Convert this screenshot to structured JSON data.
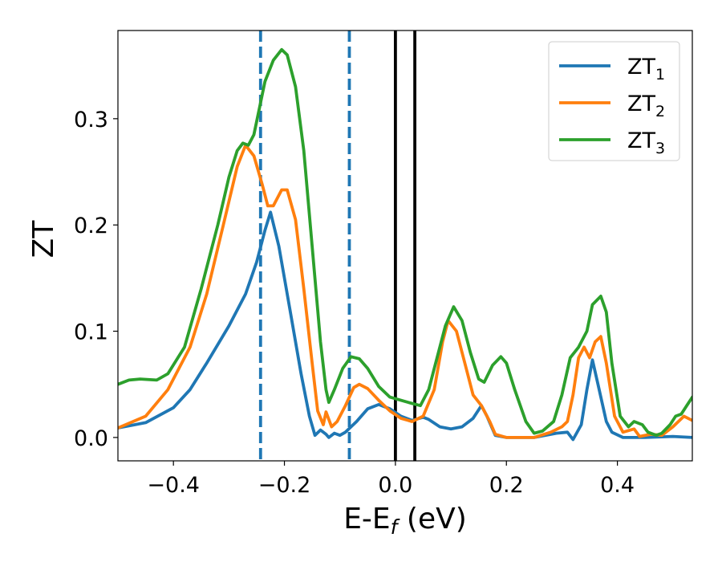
{
  "chart_data": {
    "type": "line",
    "xlabel": "E-E",
    "xlabel_sub": "f",
    "xlabel_unit": " (eV)",
    "ylabel": "ZT",
    "xlim": [
      -0.5,
      0.535
    ],
    "ylim": [
      -0.022,
      0.383
    ],
    "xticks": [
      -0.4,
      -0.2,
      0.0,
      0.2,
      0.4
    ],
    "xtick_labels": [
      "−0.4",
      "−0.2",
      "0.0",
      "0.2",
      "0.4"
    ],
    "yticks": [
      0.0,
      0.1,
      0.2,
      0.3
    ],
    "ytick_labels": [
      "0.0",
      "0.1",
      "0.2",
      "0.3"
    ],
    "grid": false,
    "legend_position": "top-right",
    "vlines": [
      {
        "x": -0.243,
        "style": "dashed",
        "color": "#1f77b4"
      },
      {
        "x": -0.083,
        "style": "dashed",
        "color": "#1f77b4"
      },
      {
        "x": 0.0,
        "style": "solid",
        "color": "#000000"
      },
      {
        "x": 0.035,
        "style": "solid",
        "color": "#000000"
      }
    ],
    "series": [
      {
        "name": "ZT",
        "sub": "1",
        "color": "#1f77b4",
        "points": [
          [
            -0.5,
            0.009
          ],
          [
            -0.45,
            0.014
          ],
          [
            -0.4,
            0.028
          ],
          [
            -0.37,
            0.045
          ],
          [
            -0.34,
            0.07
          ],
          [
            -0.3,
            0.105
          ],
          [
            -0.27,
            0.135
          ],
          [
            -0.25,
            0.165
          ],
          [
            -0.235,
            0.195
          ],
          [
            -0.225,
            0.212
          ],
          [
            -0.21,
            0.18
          ],
          [
            -0.19,
            0.12
          ],
          [
            -0.17,
            0.06
          ],
          [
            -0.155,
            0.02
          ],
          [
            -0.145,
            0.002
          ],
          [
            -0.135,
            0.007
          ],
          [
            -0.125,
            0.003
          ],
          [
            -0.12,
            0.0
          ],
          [
            -0.11,
            0.004
          ],
          [
            -0.1,
            0.002
          ],
          [
            -0.09,
            0.005
          ],
          [
            -0.07,
            0.015
          ],
          [
            -0.05,
            0.027
          ],
          [
            -0.03,
            0.031
          ],
          [
            -0.01,
            0.027
          ],
          [
            0.01,
            0.02
          ],
          [
            0.03,
            0.016
          ],
          [
            0.05,
            0.019
          ],
          [
            0.06,
            0.017
          ],
          [
            0.08,
            0.01
          ],
          [
            0.1,
            0.008
          ],
          [
            0.12,
            0.01
          ],
          [
            0.14,
            0.018
          ],
          [
            0.155,
            0.03
          ],
          [
            0.165,
            0.02
          ],
          [
            0.18,
            0.002
          ],
          [
            0.2,
            0.0
          ],
          [
            0.25,
            0.0
          ],
          [
            0.29,
            0.004
          ],
          [
            0.31,
            0.005
          ],
          [
            0.32,
            -0.002
          ],
          [
            0.335,
            0.012
          ],
          [
            0.345,
            0.045
          ],
          [
            0.355,
            0.073
          ],
          [
            0.365,
            0.05
          ],
          [
            0.38,
            0.015
          ],
          [
            0.39,
            0.005
          ],
          [
            0.41,
            0.0
          ],
          [
            0.45,
            0.0
          ],
          [
            0.5,
            0.001
          ],
          [
            0.535,
            0.0
          ]
        ]
      },
      {
        "name": "ZT",
        "sub": "2",
        "color": "#ff7f0e",
        "points": [
          [
            -0.5,
            0.009
          ],
          [
            -0.45,
            0.02
          ],
          [
            -0.41,
            0.045
          ],
          [
            -0.37,
            0.085
          ],
          [
            -0.34,
            0.135
          ],
          [
            -0.31,
            0.2
          ],
          [
            -0.285,
            0.255
          ],
          [
            -0.27,
            0.275
          ],
          [
            -0.255,
            0.265
          ],
          [
            -0.24,
            0.238
          ],
          [
            -0.23,
            0.218
          ],
          [
            -0.22,
            0.218
          ],
          [
            -0.205,
            0.233
          ],
          [
            -0.195,
            0.233
          ],
          [
            -0.18,
            0.205
          ],
          [
            -0.165,
            0.14
          ],
          [
            -0.15,
            0.07
          ],
          [
            -0.14,
            0.025
          ],
          [
            -0.13,
            0.012
          ],
          [
            -0.125,
            0.024
          ],
          [
            -0.115,
            0.01
          ],
          [
            -0.105,
            0.015
          ],
          [
            -0.09,
            0.03
          ],
          [
            -0.075,
            0.047
          ],
          [
            -0.065,
            0.05
          ],
          [
            -0.05,
            0.046
          ],
          [
            -0.03,
            0.035
          ],
          [
            -0.01,
            0.025
          ],
          [
            0.01,
            0.018
          ],
          [
            0.03,
            0.015
          ],
          [
            0.05,
            0.02
          ],
          [
            0.07,
            0.045
          ],
          [
            0.085,
            0.09
          ],
          [
            0.095,
            0.11
          ],
          [
            0.11,
            0.1
          ],
          [
            0.125,
            0.07
          ],
          [
            0.14,
            0.04
          ],
          [
            0.155,
            0.03
          ],
          [
            0.17,
            0.015
          ],
          [
            0.18,
            0.003
          ],
          [
            0.2,
            0.0
          ],
          [
            0.25,
            0.0
          ],
          [
            0.28,
            0.005
          ],
          [
            0.3,
            0.01
          ],
          [
            0.31,
            0.015
          ],
          [
            0.32,
            0.04
          ],
          [
            0.33,
            0.075
          ],
          [
            0.34,
            0.085
          ],
          [
            0.35,
            0.075
          ],
          [
            0.36,
            0.09
          ],
          [
            0.37,
            0.095
          ],
          [
            0.38,
            0.07
          ],
          [
            0.395,
            0.02
          ],
          [
            0.41,
            0.005
          ],
          [
            0.43,
            0.008
          ],
          [
            0.44,
            0.001
          ],
          [
            0.46,
            0.003
          ],
          [
            0.48,
            0.002
          ],
          [
            0.5,
            0.01
          ],
          [
            0.52,
            0.02
          ],
          [
            0.535,
            0.016
          ]
        ]
      },
      {
        "name": "ZT",
        "sub": "3",
        "color": "#2ca02c",
        "points": [
          [
            -0.5,
            0.05
          ],
          [
            -0.48,
            0.054
          ],
          [
            -0.46,
            0.055
          ],
          [
            -0.43,
            0.054
          ],
          [
            -0.41,
            0.06
          ],
          [
            -0.38,
            0.085
          ],
          [
            -0.35,
            0.14
          ],
          [
            -0.32,
            0.2
          ],
          [
            -0.3,
            0.245
          ],
          [
            -0.285,
            0.27
          ],
          [
            -0.275,
            0.277
          ],
          [
            -0.265,
            0.275
          ],
          [
            -0.255,
            0.285
          ],
          [
            -0.245,
            0.31
          ],
          [
            -0.235,
            0.335
          ],
          [
            -0.22,
            0.355
          ],
          [
            -0.205,
            0.365
          ],
          [
            -0.195,
            0.36
          ],
          [
            -0.18,
            0.33
          ],
          [
            -0.165,
            0.27
          ],
          [
            -0.15,
            0.18
          ],
          [
            -0.135,
            0.09
          ],
          [
            -0.125,
            0.045
          ],
          [
            -0.12,
            0.033
          ],
          [
            -0.11,
            0.045
          ],
          [
            -0.095,
            0.065
          ],
          [
            -0.08,
            0.076
          ],
          [
            -0.065,
            0.074
          ],
          [
            -0.05,
            0.065
          ],
          [
            -0.03,
            0.048
          ],
          [
            -0.01,
            0.038
          ],
          [
            0.01,
            0.035
          ],
          [
            0.03,
            0.032
          ],
          [
            0.045,
            0.03
          ],
          [
            0.06,
            0.045
          ],
          [
            0.075,
            0.075
          ],
          [
            0.09,
            0.105
          ],
          [
            0.105,
            0.123
          ],
          [
            0.12,
            0.11
          ],
          [
            0.135,
            0.08
          ],
          [
            0.15,
            0.055
          ],
          [
            0.16,
            0.052
          ],
          [
            0.175,
            0.068
          ],
          [
            0.19,
            0.076
          ],
          [
            0.2,
            0.07
          ],
          [
            0.215,
            0.045
          ],
          [
            0.235,
            0.015
          ],
          [
            0.25,
            0.004
          ],
          [
            0.265,
            0.006
          ],
          [
            0.285,
            0.015
          ],
          [
            0.3,
            0.04
          ],
          [
            0.315,
            0.075
          ],
          [
            0.33,
            0.085
          ],
          [
            0.345,
            0.1
          ],
          [
            0.355,
            0.125
          ],
          [
            0.37,
            0.133
          ],
          [
            0.38,
            0.118
          ],
          [
            0.39,
            0.07
          ],
          [
            0.405,
            0.02
          ],
          [
            0.42,
            0.01
          ],
          [
            0.43,
            0.015
          ],
          [
            0.445,
            0.012
          ],
          [
            0.455,
            0.005
          ],
          [
            0.47,
            0.002
          ],
          [
            0.48,
            0.004
          ],
          [
            0.495,
            0.012
          ],
          [
            0.505,
            0.02
          ],
          [
            0.515,
            0.022
          ],
          [
            0.525,
            0.03
          ],
          [
            0.535,
            0.038
          ]
        ]
      }
    ]
  }
}
